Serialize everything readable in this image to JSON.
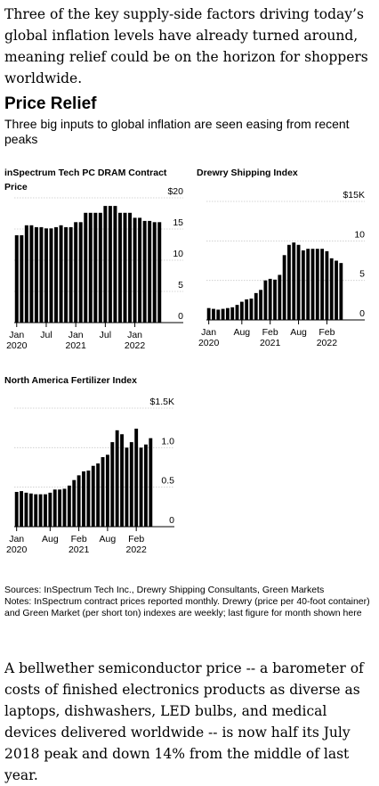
{
  "intro_text": "Three of the key supply-side factors driving today’s global inflation levels have already turned around, meaning relief could be on the horizon for shoppers worldwide.",
  "title": "Price Relief",
  "subtitle": "Three big inputs to global inflation are seen easing from recent peaks",
  "chart_data": [
    {
      "type": "bar",
      "title": "inSpectrum Tech PC DRAM Contract Price",
      "unit_prefix": "$",
      "ylim": [
        0,
        20
      ],
      "yticks": [
        0,
        5,
        10,
        15,
        20
      ],
      "xticks": [
        {
          "index": 0,
          "label": [
            "Jan",
            "2020"
          ]
        },
        {
          "index": 6,
          "label": [
            "Jul",
            ""
          ]
        },
        {
          "index": 12,
          "label": [
            "Jan",
            "2021"
          ]
        },
        {
          "index": 18,
          "label": [
            "Jul",
            ""
          ]
        },
        {
          "index": 24,
          "label": [
            "Jan",
            "2022"
          ]
        }
      ],
      "values": [
        14,
        14,
        15.6,
        15.6,
        15.3,
        15.3,
        15.1,
        15.1,
        15.3,
        15.6,
        15.3,
        15.3,
        16.1,
        16.1,
        17.6,
        17.6,
        17.6,
        17.6,
        18.7,
        18.7,
        18.7,
        17.6,
        17.6,
        17.6,
        16.8,
        16.8,
        16.3,
        16.3,
        16.1,
        16.1
      ]
    },
    {
      "type": "bar",
      "title": "Drewry Shipping Index",
      "unit_prefix": "$",
      "unit_suffix": "K",
      "ylim": [
        0,
        15
      ],
      "yticks": [
        0,
        5,
        10,
        15
      ],
      "xticks": [
        {
          "index": 0,
          "label": [
            "Jan",
            "2020"
          ]
        },
        {
          "index": 7,
          "label": [
            "Aug",
            ""
          ]
        },
        {
          "index": 13,
          "label": [
            "Feb",
            "2021"
          ]
        },
        {
          "index": 19,
          "label": [
            "Aug",
            ""
          ]
        },
        {
          "index": 25,
          "label": [
            "Feb",
            "2022"
          ]
        }
      ],
      "values": [
        1.5,
        1.4,
        1.3,
        1.4,
        1.5,
        1.6,
        1.9,
        2.3,
        2.6,
        2.7,
        3.4,
        3.8,
        5.0,
        5.2,
        5.1,
        5.7,
        8.2,
        9.5,
        9.8,
        9.5,
        8.8,
        9.0,
        9.0,
        9.0,
        9.0,
        8.7,
        7.8,
        7.5,
        7.2
      ]
    },
    {
      "type": "bar",
      "title": "North America Fertilizer Index",
      "unit_prefix": "$",
      "unit_suffix": "K",
      "ylim": [
        0,
        1.5
      ],
      "yticks": [
        0,
        0.5,
        1.0,
        1.5
      ],
      "xticks": [
        {
          "index": 0,
          "label": [
            "Jan",
            "2020"
          ]
        },
        {
          "index": 7,
          "label": [
            "Aug",
            ""
          ]
        },
        {
          "index": 13,
          "label": [
            "Feb",
            "2021"
          ]
        },
        {
          "index": 19,
          "label": [
            "Aug",
            ""
          ]
        },
        {
          "index": 25,
          "label": [
            "Feb",
            "2022"
          ]
        }
      ],
      "values": [
        0.44,
        0.45,
        0.43,
        0.42,
        0.41,
        0.41,
        0.41,
        0.43,
        0.47,
        0.47,
        0.48,
        0.52,
        0.59,
        0.65,
        0.7,
        0.71,
        0.77,
        0.8,
        0.88,
        0.91,
        1.07,
        1.22,
        1.17,
        1.0,
        1.07,
        1.24,
        1.0,
        1.04,
        1.12
      ]
    }
  ],
  "notes": [
    "Sources: InSpectrum Tech Inc., Drewry Shipping Consultants, Green Markets",
    "Notes: InSpectrum contract prices reported monthly. Drewry (price per 40-foot container) and Green Market (per short ton) indexes are weekly; last figure for month shown here"
  ],
  "outro_text": "A bellwether semiconductor price -- a barometer of costs of finished electronics products as diverse as laptops, dishwashers, LED bulbs, and medical devices delivered worldwide -- is now half its July 2018 peak and down 14% from the middle of last year."
}
